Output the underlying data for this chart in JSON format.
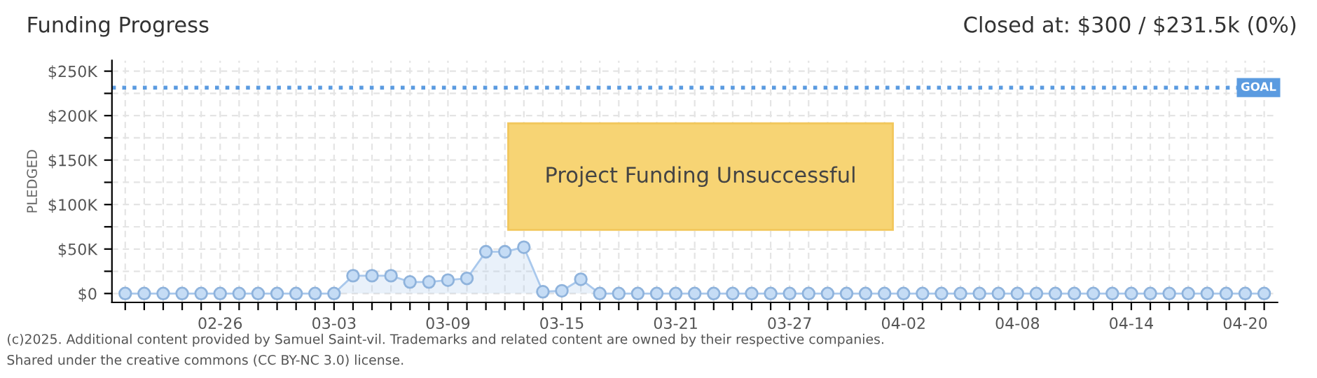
{
  "chart_data": {
    "type": "area",
    "title": "Funding Progress",
    "subtitle": "Closed at: $300 / $231.5k (0%)",
    "ylabel": "PLEDGED",
    "categories": [
      null,
      null,
      null,
      null,
      null,
      "02-26",
      null,
      null,
      null,
      null,
      null,
      "03-03",
      null,
      null,
      null,
      null,
      null,
      "03-09",
      null,
      null,
      null,
      null,
      null,
      "03-15",
      null,
      null,
      null,
      null,
      null,
      "03-21",
      null,
      null,
      null,
      null,
      null,
      "03-27",
      null,
      null,
      null,
      null,
      null,
      "04-02",
      null,
      null,
      null,
      null,
      null,
      "04-08",
      null,
      null,
      null,
      null,
      null,
      "04-14",
      null,
      null,
      null,
      null,
      null,
      "04-20",
      null
    ],
    "series": [
      {
        "color": "#a9c8ec",
        "values": [
          0,
          0,
          0,
          0,
          0,
          0,
          0,
          0,
          0,
          0,
          0,
          0,
          20000,
          20000,
          20000,
          13000,
          13000,
          15000,
          17000,
          47000,
          47000,
          52000,
          2000,
          3000,
          16000,
          0,
          0,
          0,
          0,
          0,
          0,
          0,
          0,
          0,
          0,
          0,
          0,
          0,
          0,
          0,
          0,
          0,
          0,
          0,
          0,
          0,
          0,
          0,
          0,
          0,
          0,
          0,
          0,
          0,
          0,
          0,
          0,
          0,
          0,
          0,
          0
        ]
      }
    ],
    "marker": "circle",
    "ylim": [
      -10000,
      262000
    ],
    "yticks": [
      {
        "value": 0,
        "label": "$0"
      },
      {
        "value": 25000,
        "label": null
      },
      {
        "value": 50000,
        "label": "$50K"
      },
      {
        "value": 75000,
        "label": null
      },
      {
        "value": 100000,
        "label": "$100K"
      },
      {
        "value": 125000,
        "label": null
      },
      {
        "value": 150000,
        "label": "$150K"
      },
      {
        "value": 175000,
        "label": null
      },
      {
        "value": 200000,
        "label": "$200K"
      },
      {
        "value": 225000,
        "label": null
      },
      {
        "value": 250000,
        "label": "$250K"
      }
    ],
    "grid": true,
    "ref_lines": [
      {
        "axis": "y",
        "value": 231500,
        "label": "GOAL",
        "color": "#5b9be0",
        "line_style": "dotted"
      }
    ],
    "annotations": [
      "Project Funding Unsuccessful",
      "(c)2025. Additional content provided by Samuel Saint-vil. Trademarks and related content are owned by their respective companies.",
      "Shared under the creative commons (CC BY-NC 3.0) license."
    ]
  }
}
